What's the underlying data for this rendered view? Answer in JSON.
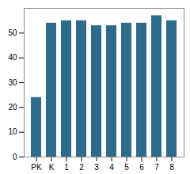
{
  "chart_data": {
    "type": "bar",
    "categories": [
      "PK",
      "K",
      "1",
      "2",
      "3",
      "4",
      "5",
      "6",
      "7",
      "8"
    ],
    "values": [
      24,
      54,
      55,
      55,
      53,
      53,
      54,
      54,
      57,
      55
    ],
    "color": "#2e6b8a",
    "ylim": [
      0,
      60
    ],
    "yticks": [
      0,
      10,
      20,
      30,
      40,
      50
    ],
    "grid": false
  }
}
